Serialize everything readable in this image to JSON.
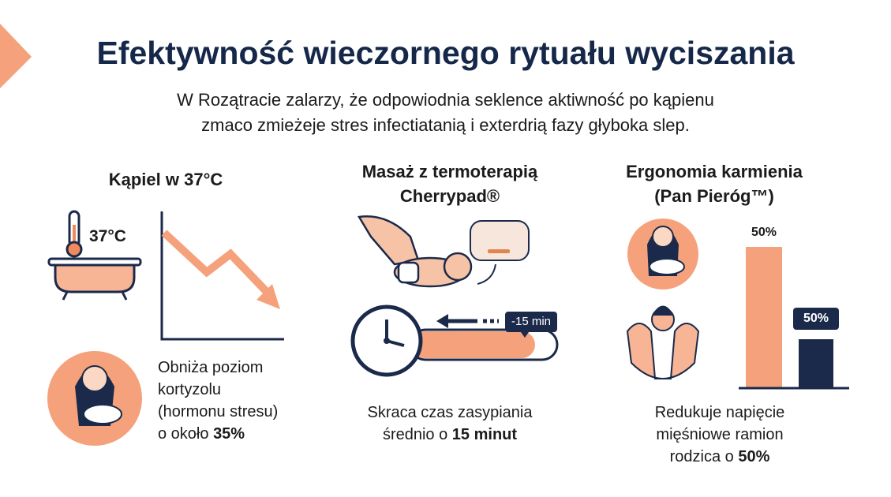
{
  "header": {
    "title": "Efektywność wieczornego rytuału wyciszania",
    "subtitle": [
      "W Rozątracie zalarzy, że odpowiodnia seklence aktiwność po kąpienu",
      "zmaco zmieżeje stres infectiatanią i exterdrią fazy głyboka slep."
    ]
  },
  "panels": [
    {
      "title": [
        "Kąpiel w 37°C"
      ],
      "icon_label": "37°C",
      "caption": [
        "Obniża poziom",
        "kortyzolu",
        "(hormonu stresu)"
      ],
      "caption_end": "o około",
      "highlight": "35%"
    },
    {
      "title": [
        "Masaż z termoterapią",
        "Cherrypad®"
      ],
      "timer_label": "-15 min",
      "caption": [
        "Skraca czas zasypiania"
      ],
      "caption_end": "średnio o",
      "highlight": "15 minut"
    },
    {
      "title": [
        "Ergonomia karmienia",
        "(Pan Pieróg™)"
      ],
      "bar_labels": [
        "50%",
        "50%"
      ],
      "caption": [
        "Redukuje napięcie",
        "mięśniowe ramion"
      ],
      "caption_end": "rodzica o",
      "highlight": "50%"
    }
  ]
}
